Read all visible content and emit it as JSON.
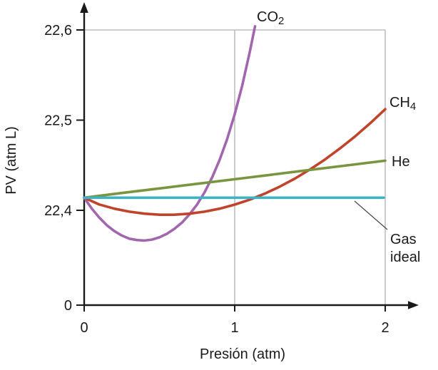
{
  "chart_data": {
    "type": "line",
    "title": "",
    "xlabel": "Presión (atm)",
    "ylabel": "PV (atm L)",
    "xlim": [
      0,
      2
    ],
    "ylim_shown": [
      22.35,
      22.62
    ],
    "axis_break_at_zero": true,
    "legend_position": "inline-labels",
    "axis_color": "#1a1a1a",
    "grid_color": "#b0b0b0",
    "grid": {
      "vlines": [
        1,
        2
      ],
      "hlines": [
        22.6
      ]
    },
    "x_ticks": [
      {
        "label": "0",
        "value": 0
      },
      {
        "label": "1",
        "value": 1
      },
      {
        "label": "2",
        "value": 2
      }
    ],
    "y_ticks": [
      {
        "label": "22,6",
        "value": 22.6
      },
      {
        "label": "22,5",
        "value": 22.5
      },
      {
        "label": "22,4",
        "value": 22.4
      },
      {
        "label": "0",
        "origin": true
      }
    ],
    "series": [
      {
        "id": "co2",
        "label_main": "CO",
        "label_sub": "2",
        "color": "#a266ae",
        "points": [
          [
            0,
            22.414
          ],
          [
            0.05,
            22.402
          ],
          [
            0.1,
            22.392
          ],
          [
            0.15,
            22.3835
          ],
          [
            0.2,
            22.377
          ],
          [
            0.25,
            22.372
          ],
          [
            0.3,
            22.3685
          ],
          [
            0.35,
            22.367
          ],
          [
            0.4,
            22.3665
          ],
          [
            0.45,
            22.3675
          ],
          [
            0.5,
            22.37
          ],
          [
            0.55,
            22.374
          ],
          [
            0.6,
            22.3795
          ],
          [
            0.65,
            22.3865
          ],
          [
            0.7,
            22.3955
          ],
          [
            0.75,
            22.4065
          ],
          [
            0.8,
            22.42
          ],
          [
            0.85,
            22.4365
          ],
          [
            0.9,
            22.456
          ],
          [
            0.95,
            22.479
          ],
          [
            1.0,
            22.5065
          ],
          [
            1.05,
            22.5385
          ],
          [
            1.1,
            22.5755
          ],
          [
            1.135,
            22.604
          ]
        ]
      },
      {
        "id": "ch4",
        "label_main": "CH",
        "label_sub": "4",
        "color": "#c0442c",
        "points": [
          [
            0,
            22.414
          ],
          [
            0.1,
            22.4065
          ],
          [
            0.2,
            22.4018
          ],
          [
            0.3,
            22.3985
          ],
          [
            0.4,
            22.3963
          ],
          [
            0.5,
            22.3951
          ],
          [
            0.6,
            22.3951
          ],
          [
            0.7,
            22.3963
          ],
          [
            0.8,
            22.3985
          ],
          [
            0.9,
            22.4018
          ],
          [
            1.0,
            22.4063
          ],
          [
            1.1,
            22.4118
          ],
          [
            1.2,
            22.4185
          ],
          [
            1.3,
            22.4263
          ],
          [
            1.4,
            22.4352
          ],
          [
            1.5,
            22.4453
          ],
          [
            1.6,
            22.4564
          ],
          [
            1.7,
            22.4687
          ],
          [
            1.8,
            22.482
          ],
          [
            1.9,
            22.4965
          ],
          [
            2.0,
            22.5121
          ]
        ]
      },
      {
        "id": "he",
        "label_main": "He",
        "label_sub": "",
        "color": "#7a9540",
        "points": [
          [
            0,
            22.414
          ],
          [
            0.25,
            22.4192
          ],
          [
            0.5,
            22.4243
          ],
          [
            0.75,
            22.4294
          ],
          [
            1.0,
            22.4345
          ],
          [
            1.25,
            22.4396
          ],
          [
            1.5,
            22.4448
          ],
          [
            1.75,
            22.4499
          ],
          [
            2.0,
            22.455
          ]
        ]
      },
      {
        "id": "ideal",
        "label_lines": [
          "Gas",
          "ideal"
        ],
        "color": "#3db3c6",
        "leader": true,
        "points": [
          [
            0,
            22.414
          ],
          [
            1.99,
            22.414
          ]
        ]
      }
    ]
  }
}
